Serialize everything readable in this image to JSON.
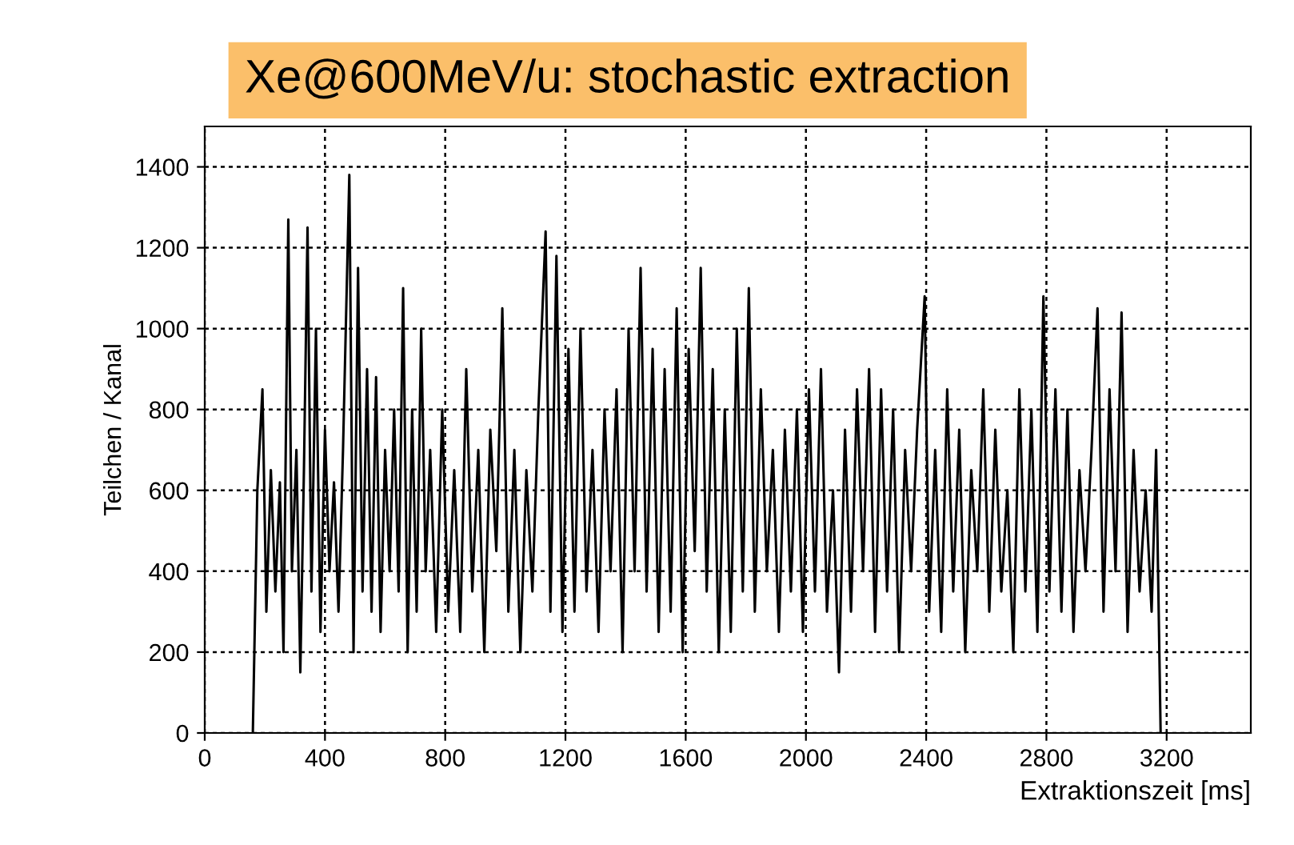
{
  "chart_data": {
    "type": "line",
    "title": "Xe@600MeV/u: stochastic extraction",
    "xlabel": "Extraktionszeit [ms]",
    "ylabel": "Teilchen / Kanal",
    "xlim": [
      0,
      3480
    ],
    "ylim": [
      0,
      1500
    ],
    "xticks": [
      0,
      400,
      800,
      1200,
      1600,
      2000,
      2400,
      2800,
      3200
    ],
    "yticks": [
      0,
      200,
      400,
      600,
      800,
      1000,
      1200,
      1400
    ],
    "grid": true,
    "marker": "none",
    "line_style": "solid",
    "series": [
      {
        "color": "#000000",
        "x": [
          160,
          175,
          192,
          205,
          220,
          235,
          250,
          262,
          278,
          290,
          305,
          318,
          330,
          342,
          355,
          370,
          385,
          400,
          415,
          430,
          445,
          460,
          481,
          495,
          510,
          525,
          540,
          555,
          570,
          585,
          600,
          615,
          630,
          645,
          660,
          675,
          690,
          705,
          720,
          735,
          750,
          770,
          790,
          810,
          830,
          850,
          870,
          890,
          910,
          930,
          950,
          970,
          990,
          1010,
          1030,
          1050,
          1070,
          1090,
          1110,
          1134,
          1150,
          1170,
          1190,
          1210,
          1230,
          1250,
          1270,
          1290,
          1310,
          1330,
          1350,
          1370,
          1390,
          1410,
          1430,
          1450,
          1470,
          1490,
          1510,
          1530,
          1550,
          1570,
          1590,
          1610,
          1630,
          1650,
          1670,
          1690,
          1710,
          1730,
          1750,
          1770,
          1790,
          1810,
          1830,
          1850,
          1870,
          1890,
          1910,
          1930,
          1950,
          1970,
          1990,
          2010,
          2030,
          2050,
          2070,
          2090,
          2110,
          2130,
          2150,
          2170,
          2190,
          2210,
          2230,
          2250,
          2270,
          2290,
          2310,
          2330,
          2350,
          2370,
          2395,
          2410,
          2430,
          2450,
          2470,
          2490,
          2510,
          2530,
          2550,
          2570,
          2590,
          2610,
          2630,
          2650,
          2670,
          2690,
          2710,
          2730,
          2750,
          2770,
          2790,
          2810,
          2830,
          2850,
          2870,
          2890,
          2910,
          2930,
          2950,
          2970,
          2990,
          3010,
          3030,
          3050,
          3070,
          3090,
          3110,
          3130,
          3150,
          3165,
          3180
        ],
        "values": [
          0,
          600,
          850,
          300,
          650,
          350,
          620,
          200,
          1270,
          400,
          700,
          150,
          650,
          1250,
          350,
          1000,
          250,
          750,
          400,
          620,
          300,
          700,
          1380,
          200,
          1150,
          350,
          900,
          300,
          880,
          250,
          700,
          400,
          800,
          350,
          1100,
          200,
          800,
          300,
          1000,
          400,
          700,
          250,
          800,
          300,
          650,
          250,
          900,
          350,
          700,
          200,
          750,
          450,
          1050,
          300,
          700,
          200,
          650,
          350,
          800,
          1240,
          300,
          1180,
          250,
          950,
          300,
          1000,
          350,
          700,
          250,
          800,
          400,
          850,
          200,
          1000,
          400,
          1150,
          350,
          950,
          250,
          900,
          300,
          1050,
          200,
          950,
          450,
          1150,
          350,
          900,
          200,
          800,
          250,
          1000,
          350,
          1100,
          300,
          850,
          400,
          700,
          250,
          750,
          350,
          800,
          250,
          850,
          350,
          900,
          300,
          600,
          150,
          750,
          300,
          850,
          400,
          900,
          250,
          850,
          350,
          800,
          200,
          700,
          400,
          750,
          1080,
          300,
          700,
          250,
          850,
          350,
          750,
          200,
          650,
          400,
          850,
          300,
          750,
          350,
          600,
          200,
          850,
          350,
          800,
          250,
          1080,
          350,
          850,
          300,
          800,
          250,
          650,
          400,
          700,
          1050,
          300,
          850,
          400,
          1040,
          250,
          700,
          350,
          600,
          300,
          700,
          0
        ]
      }
    ]
  }
}
